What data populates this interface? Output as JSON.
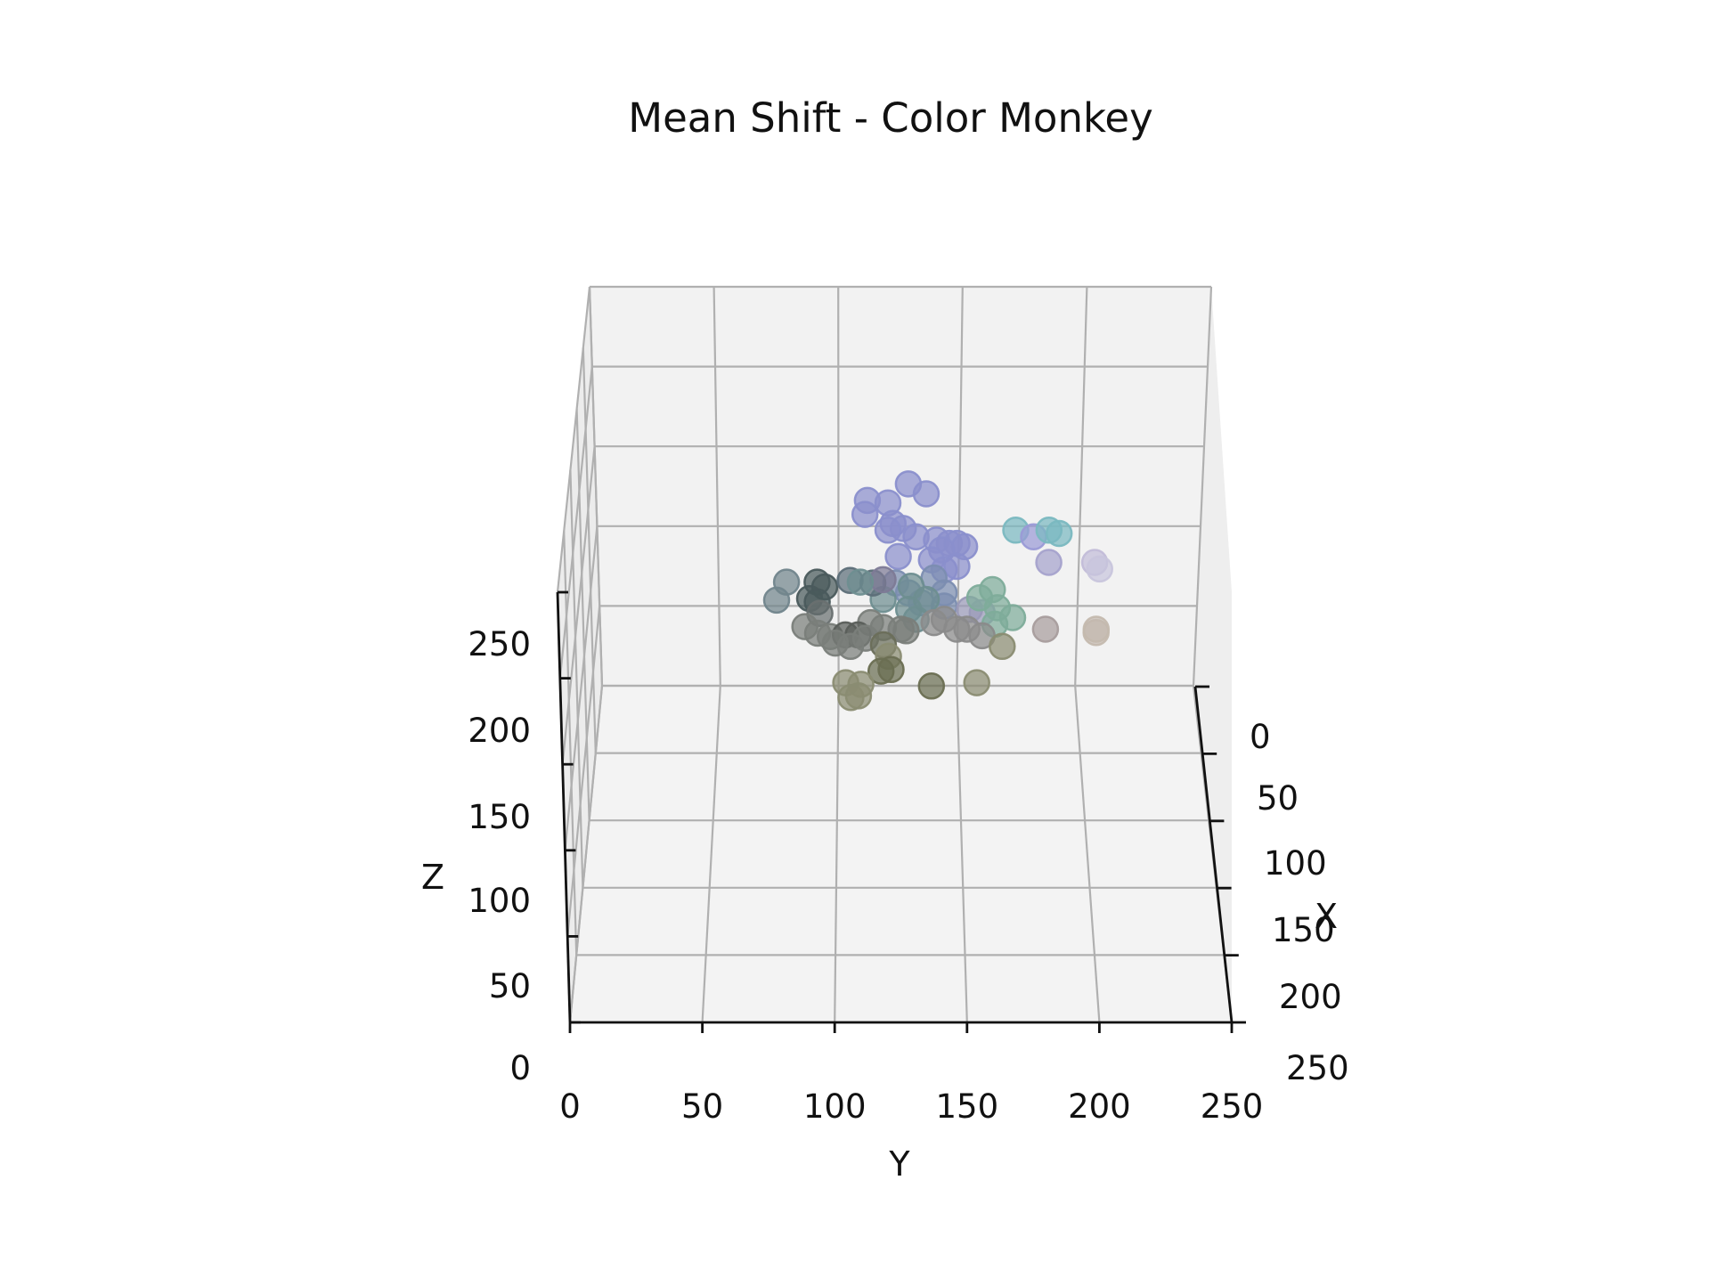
{
  "chart_data": {
    "type": "scatter",
    "projection": "3d",
    "title": "Mean Shift - Color Monkey",
    "xlabel": "X",
    "ylabel": "Y",
    "zlabel": "Z",
    "xlim": [
      0,
      250
    ],
    "ylim": [
      0,
      250
    ],
    "zlim": [
      0,
      250
    ],
    "x_ticks": [
      "0",
      "50",
      "100",
      "150",
      "200",
      "250"
    ],
    "y_ticks": [
      "0",
      "50",
      "100",
      "150",
      "200",
      "250"
    ],
    "z_ticks": [
      "0",
      "50",
      "100",
      "150",
      "200",
      "250"
    ],
    "grid": true,
    "pane_color": "#f2f2f2",
    "grid_color": "#b0b0b0",
    "points": [
      {
        "y": 129,
        "z": 212,
        "x": 110,
        "color": "#8a8fcc"
      },
      {
        "y": 113,
        "z": 202,
        "x": 110,
        "color": "#8a8fcc"
      },
      {
        "y": 136,
        "z": 206,
        "x": 110,
        "color": "#8a8fcc"
      },
      {
        "y": 121,
        "z": 199,
        "x": 108,
        "color": "#8a8fcc"
      },
      {
        "y": 112,
        "z": 192,
        "x": 108,
        "color": "#8a8fcc"
      },
      {
        "y": 123,
        "z": 188,
        "x": 110,
        "color": "#8a8fcc"
      },
      {
        "y": 127,
        "z": 185,
        "x": 110,
        "color": "#8a8fcc"
      },
      {
        "y": 121,
        "z": 184,
        "x": 110,
        "color": "#8a8fcc"
      },
      {
        "y": 132,
        "z": 180,
        "x": 110,
        "color": "#8a8fcc"
      },
      {
        "y": 140,
        "z": 178,
        "x": 110,
        "color": "#8a8fcc"
      },
      {
        "y": 145,
        "z": 176,
        "x": 110,
        "color": "#8a8fcc"
      },
      {
        "y": 148,
        "z": 176,
        "x": 110,
        "color": "#8a8fcc"
      },
      {
        "y": 151,
        "z": 174,
        "x": 110,
        "color": "#8a8fcc"
      },
      {
        "y": 142,
        "z": 172,
        "x": 110,
        "color": "#8a8fcc"
      },
      {
        "y": 138,
        "z": 166,
        "x": 110,
        "color": "#8a8fcc"
      },
      {
        "y": 125,
        "z": 168,
        "x": 110,
        "color": "#8a8fcc"
      },
      {
        "y": 143,
        "z": 160,
        "x": 110,
        "color": "#8a8fcc"
      },
      {
        "y": 148,
        "z": 162,
        "x": 110,
        "color": "#8a8fcc"
      },
      {
        "y": 124,
        "z": 152,
        "x": 110,
        "color": "#7b8db0"
      },
      {
        "y": 139,
        "z": 155,
        "x": 110,
        "color": "#7b8db0"
      },
      {
        "y": 143,
        "z": 146,
        "x": 110,
        "color": "#7b8db0"
      },
      {
        "y": 129,
        "z": 146,
        "x": 110,
        "color": "#7b8db0"
      },
      {
        "y": 134,
        "z": 140,
        "x": 110,
        "color": "#7b8db0"
      },
      {
        "y": 143,
        "z": 138,
        "x": 110,
        "color": "#7b8db0"
      },
      {
        "y": 153,
        "z": 136,
        "x": 110,
        "color": "#9a9ab8"
      },
      {
        "y": 158,
        "z": 134,
        "x": 110,
        "color": "#9a9ab8"
      },
      {
        "y": 171,
        "z": 184,
        "x": 110,
        "color": "#7ab8c0"
      },
      {
        "y": 178,
        "z": 180,
        "x": 110,
        "color": "#9a9ad6"
      },
      {
        "y": 184,
        "z": 184,
        "x": 110,
        "color": "#7ab8c0"
      },
      {
        "y": 188,
        "z": 182,
        "x": 110,
        "color": "#7ab8c0"
      },
      {
        "y": 184,
        "z": 166,
        "x": 112,
        "color": "#a5a2cc"
      },
      {
        "y": 202,
        "z": 166,
        "x": 112,
        "color": "#c2bcd8"
      },
      {
        "y": 204,
        "z": 162,
        "x": 112,
        "color": "#c8c5dc"
      },
      {
        "y": 162,
        "z": 148,
        "x": 110,
        "color": "#7eac9a"
      },
      {
        "y": 157,
        "z": 143,
        "x": 110,
        "color": "#7eac9a"
      },
      {
        "y": 164,
        "z": 137,
        "x": 110,
        "color": "#7eac9a"
      },
      {
        "y": 170,
        "z": 131,
        "x": 110,
        "color": "#7eac9a"
      },
      {
        "y": 163,
        "z": 127,
        "x": 110,
        "color": "#7eac9a"
      },
      {
        "y": 136,
        "z": 142,
        "x": 110,
        "color": "#6e8e90"
      },
      {
        "y": 129,
        "z": 136,
        "x": 110,
        "color": "#6e8e90"
      },
      {
        "y": 130,
        "z": 150,
        "x": 110,
        "color": "#6e8e90"
      },
      {
        "y": 132,
        "z": 130,
        "x": 110,
        "color": "#6e8e90"
      },
      {
        "y": 119,
        "z": 142,
        "x": 110,
        "color": "#6e8e90"
      },
      {
        "y": 115,
        "z": 152,
        "x": 110,
        "color": "#5c6e78"
      },
      {
        "y": 119,
        "z": 154,
        "x": 110,
        "color": "#7d7a96"
      },
      {
        "y": 152,
        "z": 124,
        "x": 110,
        "color": "#8a8a8a"
      },
      {
        "y": 139,
        "z": 128,
        "x": 110,
        "color": "#8a8a8a"
      },
      {
        "y": 148,
        "z": 124,
        "x": 110,
        "color": "#8a8a8a"
      },
      {
        "y": 143,
        "z": 130,
        "x": 110,
        "color": "#8a8a8a"
      },
      {
        "y": 158,
        "z": 120,
        "x": 110,
        "color": "#8a8a8a"
      },
      {
        "y": 183,
        "z": 124,
        "x": 110,
        "color": "#a89d9d"
      },
      {
        "y": 203,
        "z": 122,
        "x": 110,
        "color": "#c4b9ae"
      },
      {
        "y": 203,
        "z": 124,
        "x": 110,
        "color": "#c4b9ae"
      },
      {
        "y": 114,
        "z": 128,
        "x": 110,
        "color": "#7a7e7a"
      },
      {
        "y": 119,
        "z": 125,
        "x": 110,
        "color": "#7a7e7a"
      },
      {
        "y": 126,
        "z": 124,
        "x": 110,
        "color": "#7a7e7a"
      },
      {
        "y": 128,
        "z": 123,
        "x": 110,
        "color": "#7a7e7a"
      },
      {
        "y": 81,
        "z": 151,
        "x": 108,
        "color": "#71858c"
      },
      {
        "y": 93,
        "z": 151,
        "x": 108,
        "color": "#4a5a5c"
      },
      {
        "y": 96,
        "z": 148,
        "x": 108,
        "color": "#4a5a5c"
      },
      {
        "y": 106,
        "z": 152,
        "x": 108,
        "color": "#5c6e78"
      },
      {
        "y": 110,
        "z": 151,
        "x": 108,
        "color": "#6e8e90"
      },
      {
        "y": 77,
        "z": 140,
        "x": 108,
        "color": "#71858c"
      },
      {
        "y": 90,
        "z": 141,
        "x": 108,
        "color": "#4a5a5c"
      },
      {
        "y": 93,
        "z": 139,
        "x": 108,
        "color": "#4a5a5c"
      },
      {
        "y": 94,
        "z": 132,
        "x": 108,
        "color": "#697070"
      },
      {
        "y": 88,
        "z": 124,
        "x": 108,
        "color": "#7a7e7a"
      },
      {
        "y": 93,
        "z": 120,
        "x": 108,
        "color": "#7a7e7a"
      },
      {
        "y": 98,
        "z": 118,
        "x": 108,
        "color": "#7a7e7a"
      },
      {
        "y": 104,
        "z": 119,
        "x": 108,
        "color": "#5a5e5a"
      },
      {
        "y": 109,
        "z": 119,
        "x": 108,
        "color": "#5a5e5a"
      },
      {
        "y": 100,
        "z": 114,
        "x": 108,
        "color": "#7a7e7a"
      },
      {
        "y": 106,
        "z": 112,
        "x": 108,
        "color": "#7a7e7a"
      },
      {
        "y": 112,
        "z": 117,
        "x": 108,
        "color": "#7a7e7a"
      },
      {
        "y": 119,
        "z": 113,
        "x": 108,
        "color": "#6a6e5a"
      },
      {
        "y": 121,
        "z": 106,
        "x": 108,
        "color": "#8a8c72"
      },
      {
        "y": 118,
        "z": 97,
        "x": 108,
        "color": "#6a6e52"
      },
      {
        "y": 122,
        "z": 98,
        "x": 108,
        "color": "#6a6e52"
      },
      {
        "y": 166,
        "z": 112,
        "x": 108,
        "color": "#8a8c72"
      },
      {
        "y": 104,
        "z": 90,
        "x": 108,
        "color": "#8a8c72"
      },
      {
        "y": 110,
        "z": 89,
        "x": 108,
        "color": "#8a8c72"
      },
      {
        "y": 138,
        "z": 88,
        "x": 108,
        "color": "#6a6e52"
      },
      {
        "y": 156,
        "z": 90,
        "x": 108,
        "color": "#8a8c72"
      },
      {
        "y": 106,
        "z": 81,
        "x": 108,
        "color": "#8a8c72"
      },
      {
        "y": 109,
        "z": 82,
        "x": 108,
        "color": "#8a8c72"
      }
    ]
  }
}
